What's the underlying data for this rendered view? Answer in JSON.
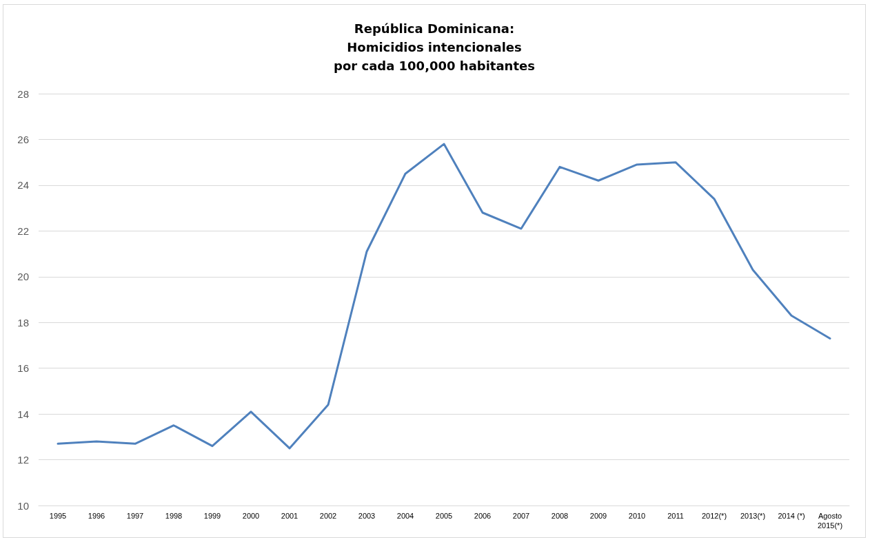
{
  "chart_data": {
    "type": "line",
    "title": "República Dominicana:\nHomicidios intencionales\npor cada 100,000 habitantes",
    "categories": [
      "1995",
      "1996",
      "1997",
      "1998",
      "1999",
      "2000",
      "2001",
      "2002",
      "2003",
      "2004",
      "2005",
      "2006",
      "2007",
      "2008",
      "2009",
      "2010",
      "2011",
      "2012(*)",
      "2013(*)",
      "2014 (*)",
      "Agosto\n2015(*)"
    ],
    "series": [
      {
        "color": "#4f81bd",
        "values": [
          12.7,
          12.8,
          12.7,
          13.5,
          12.6,
          14.1,
          12.5,
          14.4,
          21.1,
          24.5,
          25.8,
          22.8,
          22.1,
          24.8,
          24.2,
          24.9,
          25.0,
          23.4,
          20.3,
          18.3,
          17.3
        ]
      }
    ],
    "ylim": [
      10,
      28
    ],
    "yticks": [
      10,
      12,
      14,
      16,
      18,
      20,
      22,
      24,
      26,
      28
    ],
    "grid": "y",
    "marker": "none",
    "line_style": "solid"
  }
}
